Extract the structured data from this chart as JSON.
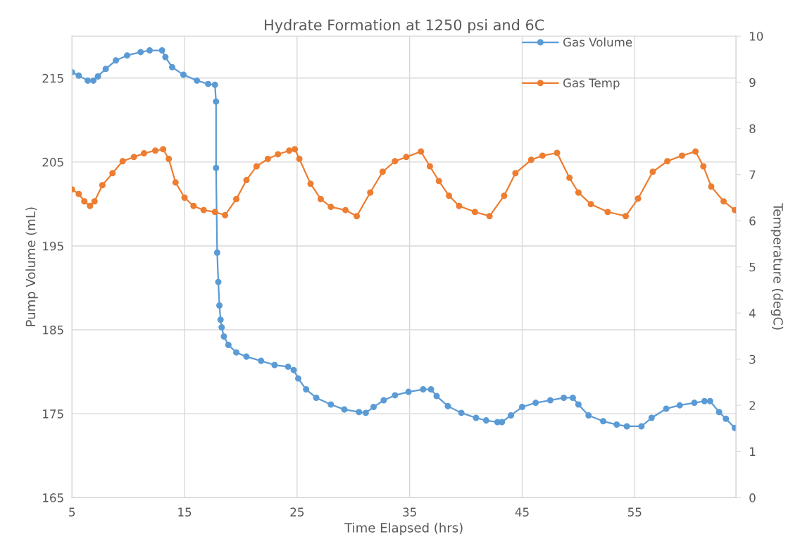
{
  "chart_data": {
    "type": "line",
    "title": "Hydrate Formation at 1250 psi and 6C",
    "xlabel": "Time Elapsed (hrs)",
    "ylabel": "Pump Volume (mL)",
    "y2label": "Temperature (degC)",
    "xlim": [
      5,
      64
    ],
    "xticks": [
      5,
      15,
      25,
      35,
      45,
      55
    ],
    "ylim": [
      165,
      220
    ],
    "yticks": [
      165,
      175,
      185,
      195,
      205,
      215
    ],
    "y2lim": [
      0,
      10
    ],
    "y2ticks": [
      0,
      1,
      2,
      3,
      4,
      5,
      6,
      7,
      8,
      9,
      10
    ],
    "grid": true,
    "legend": "top right",
    "marker": "circle",
    "line_style": "solid",
    "series": [
      {
        "name": "Gas Volume",
        "color": "#5b9bd5",
        "x": [
          5.0,
          5.6,
          6.4,
          6.9,
          7.3,
          8.0,
          8.9,
          9.9,
          11.1,
          11.9,
          13.0,
          13.3,
          13.9,
          14.9,
          16.1,
          17.1,
          17.7,
          17.8,
          17.8,
          17.9,
          18.0,
          18.1,
          18.2,
          18.3,
          18.5,
          18.9,
          19.6,
          20.5,
          21.8,
          23.0,
          24.2,
          24.7,
          25.1,
          25.8,
          26.7,
          28.0,
          29.2,
          30.5,
          31.1,
          31.8,
          32.7,
          33.7,
          34.9,
          36.2,
          36.9,
          37.4,
          38.4,
          39.6,
          40.9,
          41.8,
          42.8,
          43.2,
          44.0,
          45.0,
          46.2,
          47.5,
          48.7,
          49.5,
          50.0,
          50.9,
          52.2,
          53.4,
          54.3,
          55.6,
          56.5,
          57.8,
          59.0,
          60.3,
          61.2,
          61.7,
          62.5,
          63.1,
          63.9
        ],
        "values": [
          215.7,
          215.3,
          214.7,
          214.7,
          215.2,
          216.1,
          217.1,
          217.7,
          218.1,
          218.3,
          218.3,
          217.5,
          216.3,
          215.4,
          214.7,
          214.3,
          214.2,
          212.2,
          204.3,
          194.2,
          190.7,
          187.9,
          186.2,
          185.3,
          184.2,
          183.2,
          182.3,
          181.8,
          181.3,
          180.8,
          180.6,
          180.2,
          179.2,
          177.9,
          176.9,
          176.1,
          175.5,
          175.2,
          175.1,
          175.8,
          176.6,
          177.2,
          177.6,
          177.9,
          177.9,
          177.1,
          175.9,
          175.1,
          174.5,
          174.2,
          174.0,
          174.0,
          174.8,
          175.8,
          176.3,
          176.6,
          176.9,
          176.9,
          176.1,
          174.8,
          174.1,
          173.7,
          173.5,
          173.5,
          174.5,
          175.6,
          176.0,
          176.3,
          176.5,
          176.5,
          175.2,
          174.4,
          173.3
        ]
      },
      {
        "name": "Gas Temp",
        "color": "#ed7d31",
        "axis": "y2",
        "x": [
          5.0,
          5.6,
          6.1,
          6.6,
          7.0,
          7.7,
          8.6,
          9.5,
          10.5,
          11.4,
          12.4,
          13.1,
          13.6,
          14.2,
          15.0,
          15.8,
          16.7,
          17.7,
          18.6,
          19.6,
          20.5,
          21.4,
          22.4,
          23.3,
          24.3,
          24.8,
          25.2,
          26.2,
          27.1,
          28.0,
          29.3,
          30.3,
          31.5,
          32.6,
          33.7,
          34.7,
          36.0,
          36.8,
          37.6,
          38.5,
          39.4,
          40.8,
          42.1,
          43.4,
          44.4,
          45.8,
          46.8,
          48.1,
          49.2,
          50.0,
          51.1,
          52.6,
          54.2,
          55.3,
          56.6,
          57.9,
          59.2,
          60.4,
          61.1,
          61.8,
          62.9,
          63.9
        ],
        "values": [
          6.68,
          6.58,
          6.42,
          6.32,
          6.42,
          6.77,
          7.03,
          7.29,
          7.38,
          7.46,
          7.52,
          7.55,
          7.34,
          6.83,
          6.5,
          6.32,
          6.23,
          6.19,
          6.12,
          6.47,
          6.88,
          7.18,
          7.34,
          7.44,
          7.52,
          7.55,
          7.34,
          6.8,
          6.47,
          6.3,
          6.23,
          6.1,
          6.61,
          7.06,
          7.29,
          7.38,
          7.5,
          7.18,
          6.86,
          6.54,
          6.32,
          6.19,
          6.1,
          6.54,
          7.03,
          7.32,
          7.41,
          7.47,
          6.93,
          6.61,
          6.36,
          6.19,
          6.1,
          6.48,
          7.06,
          7.29,
          7.41,
          7.5,
          7.18,
          6.74,
          6.42,
          6.23
        ]
      }
    ]
  }
}
